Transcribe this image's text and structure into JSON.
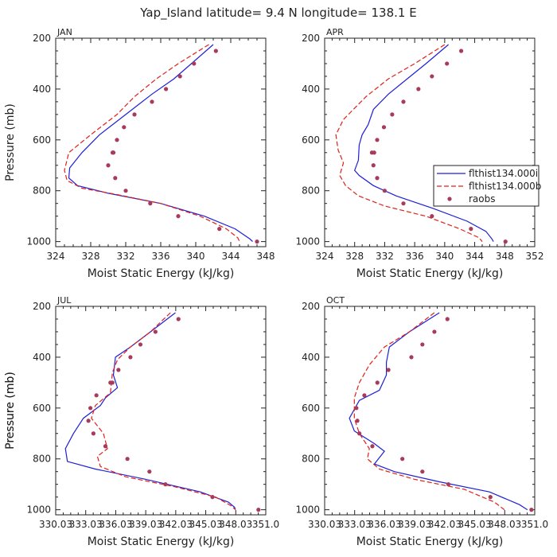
{
  "title": "Yap_Island  latitude= 9.4 N longitude= 138.1 E",
  "colors": {
    "model": "#1f1fd6",
    "model_b": "#e0201a",
    "obs": "#a83a5a",
    "axis": "#222222"
  },
  "legend": {
    "labels": [
      "flthist134.000i",
      "flthist134.000b",
      "raobs"
    ]
  },
  "chart_data": [
    {
      "type": "line",
      "panel": "JAN",
      "xlabel": "Moist Static Energy (kJ/kg)",
      "ylabel": "Pressure (mb)",
      "xlim": [
        324,
        348
      ],
      "ylim": [
        1020,
        200
      ],
      "xticks": [
        324,
        328,
        332,
        336,
        340,
        344,
        348
      ],
      "xtick_labels": [
        "324",
        "328",
        "332",
        "336",
        "340",
        "344",
        "348"
      ],
      "yticks": [
        200,
        400,
        600,
        800,
        1000
      ],
      "ytick_labels": [
        "200",
        "400",
        "600",
        "800",
        "1000"
      ],
      "series": [
        {
          "name": "flthist134.000i",
          "style": "solid",
          "x": [
            342.0,
            339.5,
            337.5,
            335.0,
            332.0,
            329.0,
            327.0,
            325.6,
            325.5,
            326.5,
            330.0,
            336.0,
            341.0,
            344.5,
            346.2,
            346.5
          ],
          "y": [
            225,
            300,
            360,
            420,
            500,
            580,
            650,
            710,
            750,
            780,
            810,
            850,
            900,
            950,
            990,
            1000
          ]
        },
        {
          "name": "flthist134.000b",
          "style": "dashed",
          "x": [
            341.5,
            338.0,
            335.5,
            333.0,
            331.0,
            328.0,
            325.5,
            325.0,
            325.3,
            327.0,
            331.0,
            336.0,
            340.5,
            343.5,
            344.8,
            345.0
          ],
          "y": [
            225,
            300,
            360,
            430,
            500,
            580,
            650,
            720,
            760,
            790,
            815,
            850,
            900,
            950,
            985,
            1000
          ]
        },
        {
          "name": "raobs",
          "style": "points",
          "x": [
            342.3,
            339.8,
            338.2,
            336.6,
            335.0,
            333.0,
            331.8,
            331.0,
            330.6,
            330.5,
            330.0,
            330.8,
            332.0,
            334.8,
            338.0,
            342.7,
            347.0
          ],
          "y": [
            250,
            300,
            350,
            400,
            450,
            500,
            550,
            600,
            650,
            650,
            700,
            750,
            800,
            850,
            900,
            950,
            1000
          ]
        }
      ]
    },
    {
      "type": "line",
      "panel": "APR",
      "xlabel": "Moist Static Energy (kJ/kg)",
      "ylabel": "",
      "xlim": [
        324,
        352
      ],
      "ylim": [
        1020,
        200
      ],
      "xticks": [
        324,
        328,
        332,
        336,
        340,
        344,
        348,
        352
      ],
      "xtick_labels": [
        "324",
        "328",
        "332",
        "336",
        "340",
        "344",
        "348",
        "352"
      ],
      "yticks": [
        200,
        400,
        600,
        800,
        1000
      ],
      "ytick_labels": [
        "200",
        "400",
        "600",
        "800",
        "1000"
      ],
      "series": [
        {
          "name": "flthist134.000i",
          "style": "solid",
          "x": [
            340.5,
            337.5,
            335.0,
            332.5,
            330.5,
            329.8,
            329.0,
            328.6,
            328.5,
            328.0,
            328.6,
            330.5,
            333.5,
            338.5,
            343.0,
            345.5,
            346.3,
            346.5
          ],
          "y": [
            225,
            300,
            360,
            420,
            480,
            540,
            580,
            620,
            680,
            720,
            740,
            780,
            820,
            870,
            920,
            960,
            990,
            1000
          ]
        },
        {
          "name": "flthist134.000b",
          "style": "dashed",
          "x": [
            340.0,
            336.0,
            332.5,
            329.5,
            326.5,
            325.5,
            325.8,
            326.5,
            326.0,
            326.8,
            328.5,
            332.0,
            337.5,
            342.0,
            344.6,
            345.0
          ],
          "y": [
            225,
            300,
            360,
            430,
            520,
            580,
            640,
            690,
            740,
            780,
            820,
            860,
            900,
            950,
            985,
            1000
          ]
        },
        {
          "name": "raobs",
          "style": "points",
          "x": [
            342.2,
            340.3,
            338.3,
            336.5,
            334.5,
            333.0,
            331.9,
            331.0,
            330.6,
            330.3,
            330.5,
            331.0,
            332.0,
            334.5,
            338.3,
            343.5,
            348.1
          ],
          "y": [
            250,
            300,
            350,
            400,
            450,
            500,
            550,
            600,
            650,
            650,
            700,
            750,
            800,
            850,
            900,
            950,
            1000
          ]
        }
      ]
    },
    {
      "type": "line",
      "panel": "JUL",
      "xlabel": "Moist Static Energy (kJ/kg)",
      "ylabel": "Pressure (mb)",
      "xlim": [
        330.03,
        351.03
      ],
      "ylim": [
        1020,
        200
      ],
      "xticks": [
        330.03,
        333.03,
        336.03,
        339.03,
        342.03,
        345.03,
        348.03,
        351.03
      ],
      "xtick_labels": [
        "330.03",
        "333.03",
        "336.03",
        "339.03",
        "342.03",
        "345.03",
        "348.03",
        "351.0"
      ],
      "yticks": [
        200,
        400,
        600,
        800,
        1000
      ],
      "ytick_labels": [
        "200",
        "400",
        "600",
        "800",
        "1000"
      ],
      "series": [
        {
          "name": "flthist134.000i",
          "style": "solid",
          "x": [
            342.0,
            339.5,
            337.5,
            336.0,
            335.8,
            336.2,
            335.0,
            334.5,
            332.8,
            331.8,
            331.0,
            331.2,
            334.0,
            339.0,
            344.5,
            347.3,
            347.9,
            348.0
          ],
          "y": [
            225,
            300,
            360,
            400,
            470,
            520,
            560,
            590,
            640,
            700,
            760,
            810,
            840,
            880,
            930,
            970,
            990,
            1000
          ]
        },
        {
          "name": "flthist134.000b",
          "style": "dashed",
          "x": [
            341.5,
            339.5,
            337.5,
            336.2,
            335.7,
            335.5,
            334.0,
            333.6,
            334.8,
            335.2,
            334.2,
            334.5,
            337.0,
            342.0,
            346.0,
            347.6,
            348.0
          ],
          "y": [
            225,
            300,
            360,
            410,
            460,
            540,
            590,
            640,
            700,
            760,
            790,
            830,
            870,
            910,
            950,
            985,
            1000
          ]
        },
        {
          "name": "raobs",
          "style": "points",
          "x": [
            342.3,
            340.0,
            338.5,
            337.5,
            336.3,
            335.7,
            335.5,
            334.1,
            333.5,
            333.3,
            333.8,
            335.0,
            337.2,
            339.4,
            341.0,
            345.7,
            350.3
          ],
          "y": [
            250,
            300,
            350,
            400,
            450,
            500,
            500,
            550,
            600,
            650,
            700,
            750,
            800,
            850,
            900,
            950,
            1000
          ]
        }
      ]
    },
    {
      "type": "line",
      "panel": "OCT",
      "xlabel": "Moist Static Energy (kJ/kg)",
      "ylabel": "Pressure (mb)",
      "xlim": [
        330.03,
        351.03
      ],
      "ylim": [
        1020,
        200
      ],
      "xticks": [
        330.03,
        333.03,
        336.03,
        339.03,
        342.03,
        345.03,
        348.03,
        351.03
      ],
      "xtick_labels": [
        "330.03",
        "333.03",
        "336.03",
        "339.03",
        "342.03",
        "345.03",
        "348.03",
        "351.0"
      ],
      "yticks": [
        200,
        400,
        600,
        800,
        1000
      ],
      "ytick_labels": [
        "200",
        "400",
        "600",
        "800",
        "1000"
      ],
      "series": [
        {
          "name": "flthist134.000i",
          "style": "solid",
          "x": [
            341.5,
            338.5,
            336.5,
            336.2,
            336.2,
            335.5,
            333.5,
            332.5,
            333.0,
            335.0,
            336.0,
            335.0,
            337.0,
            341.5,
            346.5,
            349.5,
            350.3
          ],
          "y": [
            225,
            300,
            360,
            420,
            470,
            530,
            570,
            640,
            690,
            740,
            770,
            820,
            850,
            890,
            930,
            980,
            1000
          ]
        },
        {
          "name": "flthist134.000b",
          "style": "dashed",
          "x": [
            341.0,
            338.5,
            336.0,
            334.5,
            333.5,
            333.0,
            333.0,
            333.5,
            334.5,
            334.3,
            335.5,
            339.0,
            344.0,
            347.0,
            348.0
          ],
          "y": [
            225,
            300,
            360,
            430,
            500,
            560,
            640,
            700,
            760,
            800,
            840,
            880,
            920,
            970,
            1000
          ]
        },
        {
          "name": "raobs",
          "style": "points",
          "x": [
            342.3,
            341.0,
            339.8,
            338.7,
            336.4,
            335.3,
            334.0,
            333.2,
            333.3,
            333.5,
            334.8,
            337.8,
            339.8,
            342.4,
            346.6,
            350.7
          ],
          "y": [
            250,
            300,
            350,
            400,
            450,
            500,
            550,
            600,
            650,
            700,
            750,
            800,
            850,
            900,
            950,
            1000
          ]
        }
      ]
    }
  ]
}
